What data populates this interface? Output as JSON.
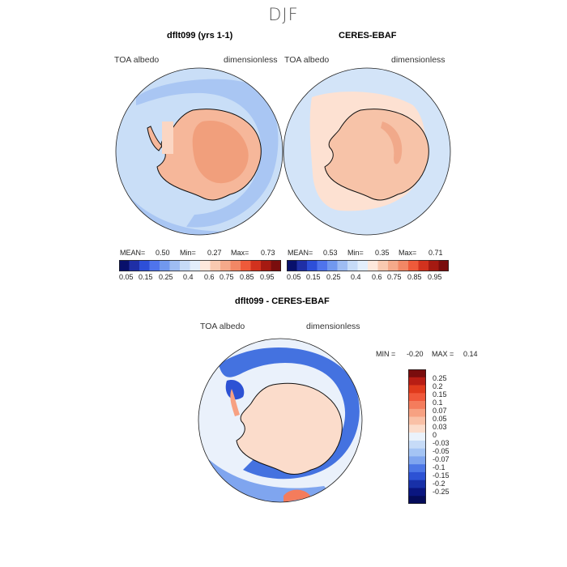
{
  "season": "DJF",
  "panels": [
    {
      "id": "model",
      "title": "dflt099 (yrs 1-1)",
      "variable": "TOA albedo",
      "units": "dimensionless",
      "stats": {
        "mean_label": "MEAN=",
        "mean": "0.50",
        "min_label": "Min=",
        "min": "0.27",
        "max_label": "Max=",
        "max": "0.73"
      }
    },
    {
      "id": "obs",
      "title": "CERES-EBAF",
      "variable": "TOA albedo",
      "units": "dimensionless",
      "stats": {
        "mean_label": "MEAN=",
        "mean": "0.53",
        "min_label": "Min=",
        "min": "0.35",
        "max_label": "Max=",
        "max": "0.71"
      }
    }
  ],
  "top_colorbar": {
    "colors": [
      "#08106b",
      "#1f2fa6",
      "#2d4fd8",
      "#4f74ec",
      "#7198ee",
      "#9ebcf2",
      "#c6dbf7",
      "#e2eefb",
      "#fde8dc",
      "#f9c9b0",
      "#f5a98a",
      "#f28765",
      "#ee5a3a",
      "#d2321e",
      "#a51a12",
      "#7a0d0d"
    ],
    "ticks": [
      "0.05",
      "0.15",
      "0.25",
      "0.4",
      "0.6",
      "0.75",
      "0.85",
      "0.95"
    ]
  },
  "diff_panel": {
    "title": "dflt099 - CERES-EBAF",
    "variable": "TOA albedo",
    "units": "dimensionless",
    "stats": {
      "min_label": "MIN =",
      "min": "-0.20",
      "max_label": "MAX =",
      "max": "0.14"
    }
  },
  "diff_colorbar": {
    "colors": [
      "#7a0d0d",
      "#b81d14",
      "#e03a1c",
      "#f0583a",
      "#f47c5c",
      "#f7a182",
      "#f9c0a6",
      "#fbdccb",
      "#eaf2fb",
      "#c6dbf7",
      "#a4c4f4",
      "#7fa5ef",
      "#4d77e6",
      "#2d52d4",
      "#1830a8",
      "#0a1680",
      "#050c5a"
    ],
    "ticks": [
      "0.25",
      "0.2",
      "0.15",
      "0.1",
      "0.07",
      "0.05",
      "0.03",
      "0",
      "-0.03",
      "-0.05",
      "-0.07",
      "-0.1",
      "-0.15",
      "-0.2",
      "-0.25"
    ]
  },
  "colors": {
    "ocean_model": "#c9def7",
    "ocean_model_band": "#a9c6f3",
    "land_model": "#f6b79a",
    "land_model_inner": "#f19f7c",
    "ocean_obs": "#d3e4f8",
    "land_obs": "#f7c3a8",
    "diff_base": "#eaf1fb",
    "diff_neg_ring": "#4472e0",
    "diff_pos": "#fbdccb"
  }
}
